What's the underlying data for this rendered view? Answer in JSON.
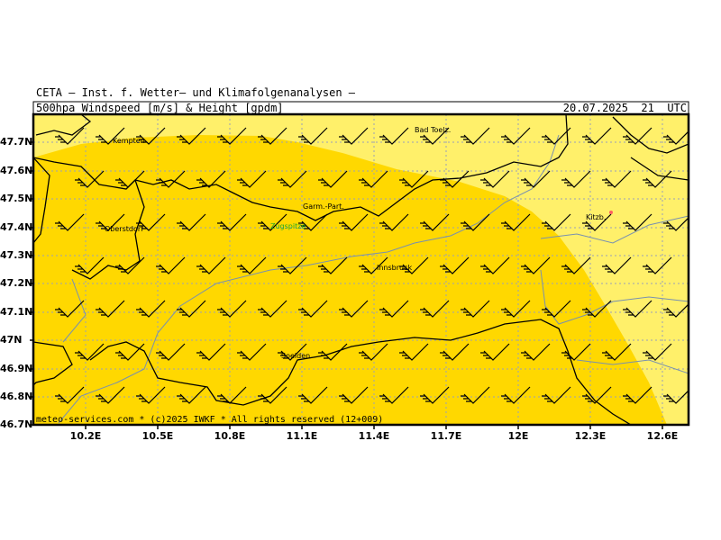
{
  "header": {
    "org": "CETA — Inst. f. Wetter— und Klimafolgenanalysen —",
    "title": "500hpa_Windspeed_[m/s]_&_Height_[gpdm]",
    "date": "20.07.2025  21  UTC"
  },
  "map": {
    "lon_ticks": [
      "10.2E",
      "10.5E",
      "10.8E",
      "11.1E",
      "11.4E",
      "11.7E",
      "12E",
      "12.3E",
      "12.6E"
    ],
    "lat_ticks": [
      "47.7N",
      "47.6N",
      "47.5N",
      "47.4N",
      "47.3N",
      "47.2N",
      "47.1N",
      "47N",
      "46.9N",
      "46.8N",
      "46.7N"
    ],
    "cities": [
      {
        "name": "Kempten"
      },
      {
        "name": "Bad Toelz."
      },
      {
        "name": "Garm.-Part."
      },
      {
        "name": "Zugspitze"
      },
      {
        "name": "Oberstdorf"
      },
      {
        "name": "Innsbruck"
      },
      {
        "name": "Kitzb."
      },
      {
        "name": "Soelden"
      }
    ],
    "footer": "meteo-services.com * (c)2025 IWKF * All rights reserved (12+009)",
    "colors": {
      "region_outer": "#fff06a",
      "region_inner": "#ffd800",
      "border": "#000000",
      "rivers": "#7890b0",
      "grid": "#9aa0b8",
      "label_highlight": "#22aa22"
    },
    "wind_barb_icon": "wind-barb-icon"
  }
}
